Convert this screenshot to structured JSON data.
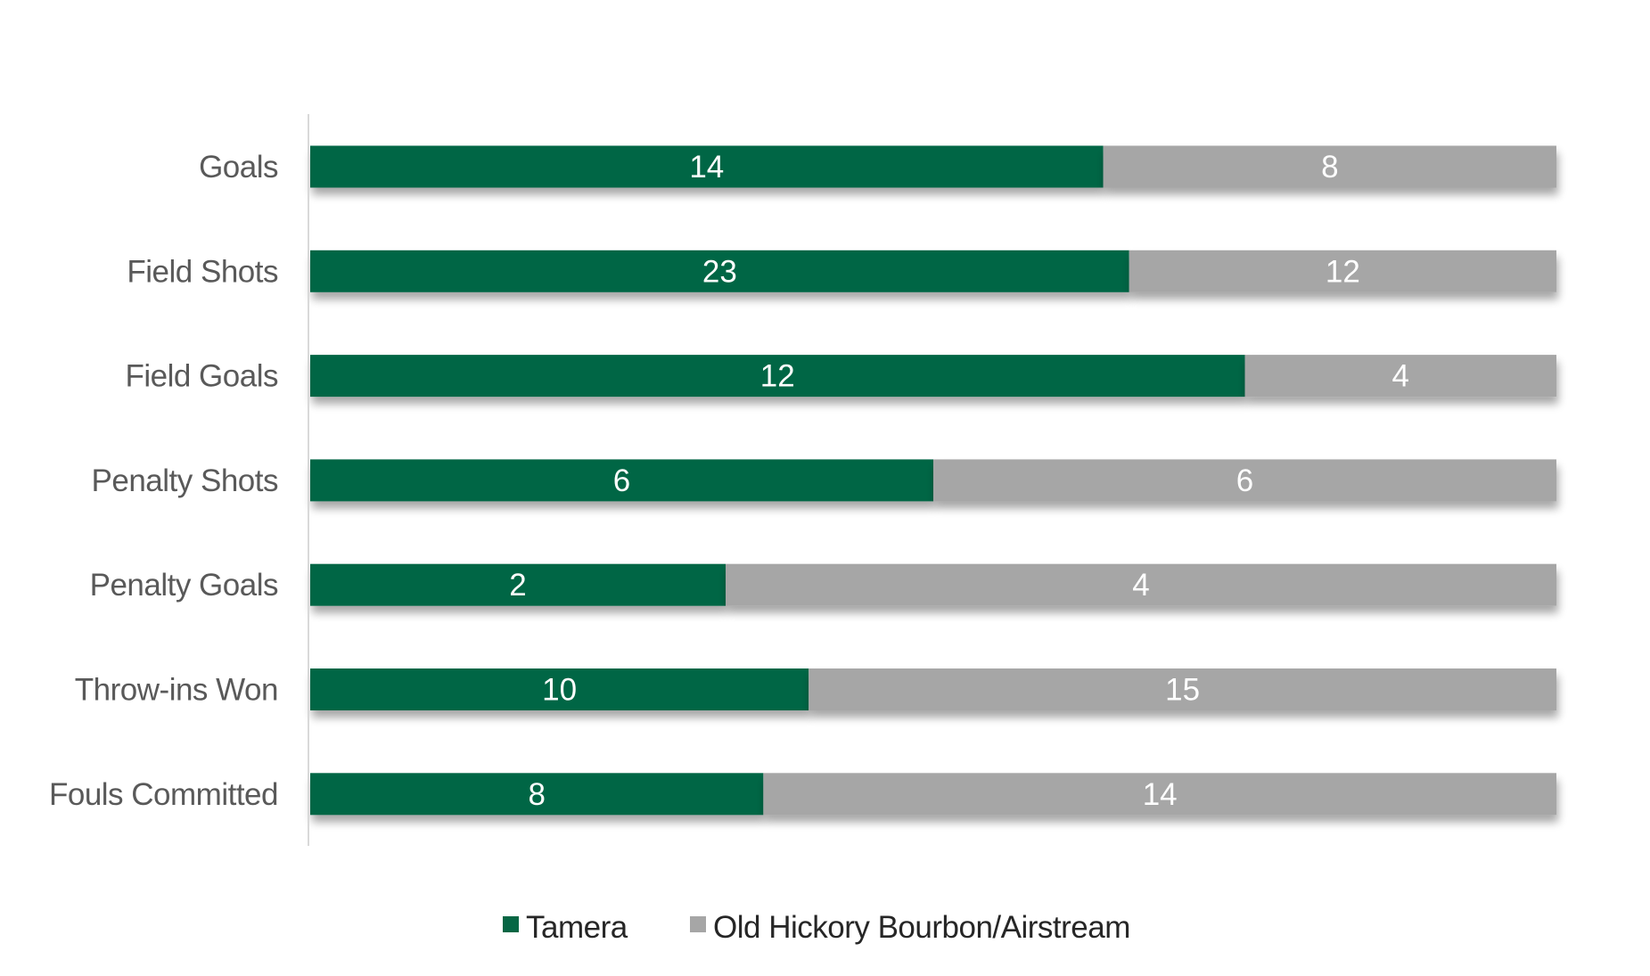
{
  "chart_data": {
    "type": "bar",
    "orientation": "horizontal",
    "stacking": "percent",
    "title": "",
    "xlabel": "",
    "ylabel": "",
    "categories": [
      "Goals",
      "Field Shots",
      "Field Goals",
      "Penalty Shots",
      "Penalty Goals",
      "Throw-ins Won",
      "Fouls Committed"
    ],
    "series": [
      {
        "name": "Tamera",
        "color": "#066644",
        "values": [
          14,
          23,
          12,
          6,
          2,
          10,
          8
        ],
        "data_labels": [
          "14",
          "23",
          "12",
          "6",
          "2",
          "10",
          "8"
        ]
      },
      {
        "name": "Old Hickory Bourbon/Airstream",
        "color": "#a6a6a6",
        "values": [
          8,
          12,
          4,
          6,
          4,
          15,
          14
        ],
        "data_labels": [
          "8",
          "12",
          "4",
          "6",
          "4",
          "15",
          "14"
        ]
      }
    ],
    "legend": {
      "position": "bottom",
      "entries": [
        "Tamera",
        "Old Hickory Bourbon/Airstream"
      ]
    },
    "grid": false,
    "x_axis_visible": false
  }
}
